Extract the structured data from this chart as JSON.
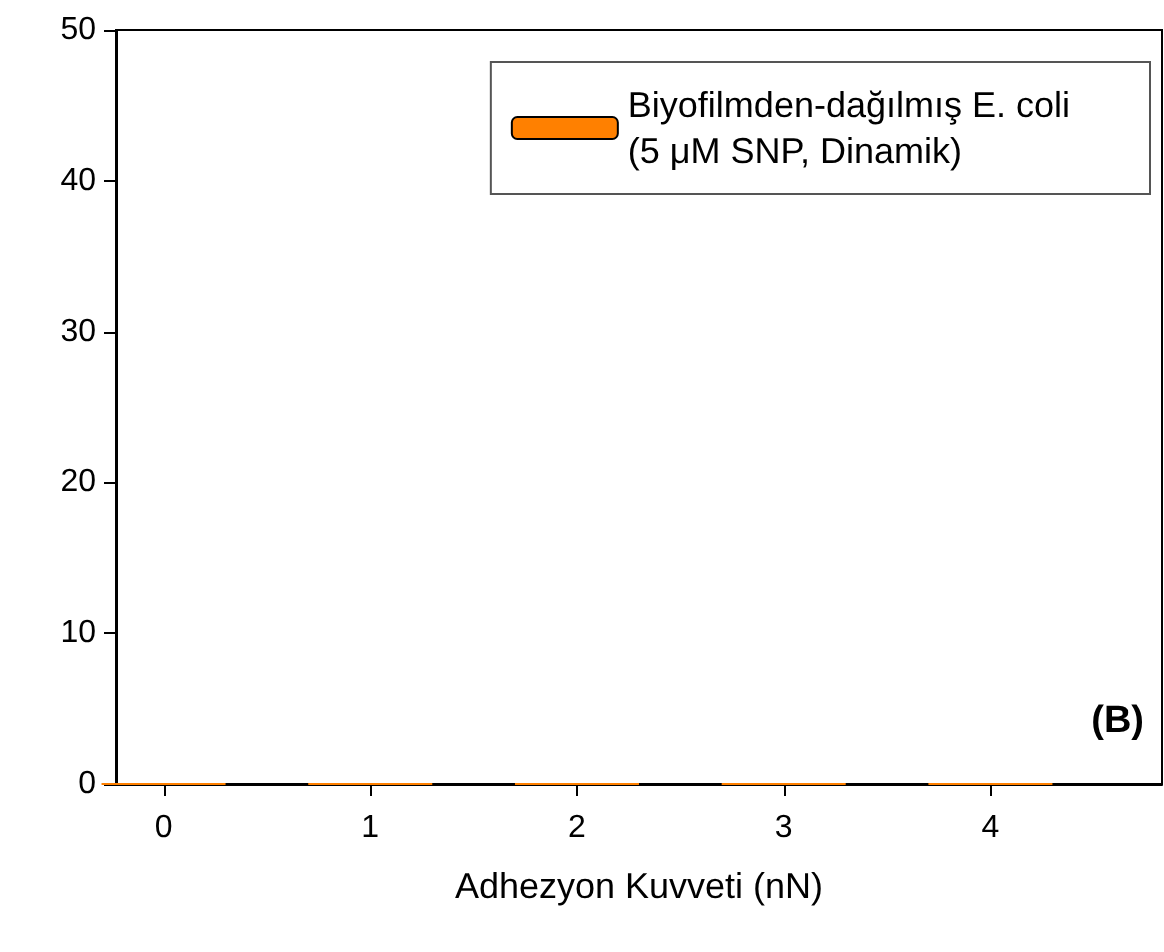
{
  "chart_data": {
    "type": "bar",
    "xlabel": "Adhezyon Kuvveti (nN)",
    "x": [
      0,
      1,
      2,
      3,
      4
    ],
    "series": [
      {
        "name": "Biyofilmden-dağılmış E. coli\n(5 μM SNP, Dinamik)",
        "color": "#ff8000",
        "values": [
          0,
          0,
          0,
          0,
          0
        ]
      }
    ],
    "xlim": [
      -0.23,
      4.83
    ],
    "xticks": [
      0,
      1,
      2,
      3,
      4
    ],
    "ylim": [
      0,
      50
    ],
    "yticks": [
      0,
      10,
      20,
      30,
      40,
      50
    ],
    "legend": "top right",
    "grid": false,
    "annotations": [
      "(B)"
    ]
  }
}
